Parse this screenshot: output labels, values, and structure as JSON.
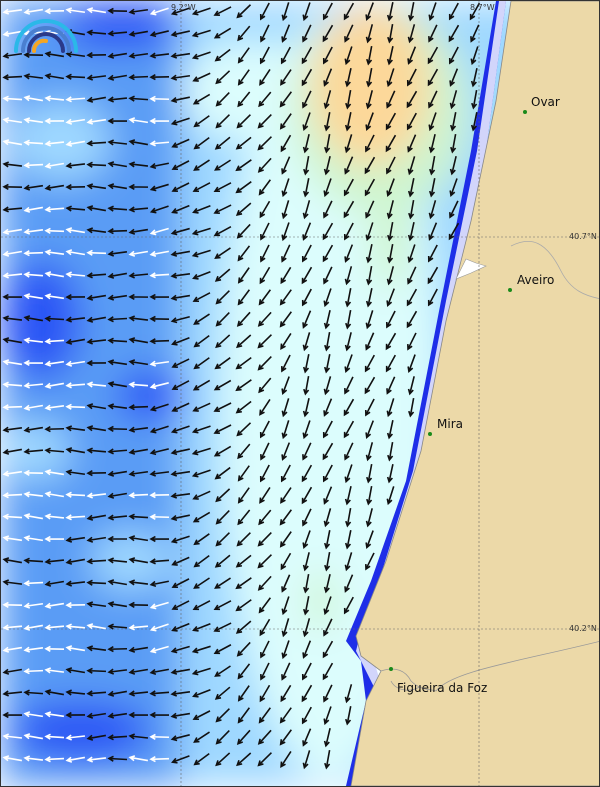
{
  "map": {
    "longitude_labels": [
      "9.2°W",
      "8.7°W"
    ],
    "latitude_labels": [
      "40.7°N",
      "40.2°N"
    ],
    "places": [
      {
        "name": "Ovar"
      },
      {
        "name": "Aveiro"
      },
      {
        "name": "Mira"
      },
      {
        "name": "Figueira da Foz"
      }
    ],
    "colors": {
      "land": "#ecd9a8",
      "deep_blue": "#1a3cf5",
      "mid_blue": "#5a9cf5",
      "light_blue": "#9fd8ff",
      "pale_cyan": "#dcfdfd",
      "green": "#cff5cf",
      "orange": "#fcd89a",
      "arrow_dark": "#111111",
      "arrow_light": "#ffffff"
    },
    "logo": "wave-rainbow-logo"
  }
}
